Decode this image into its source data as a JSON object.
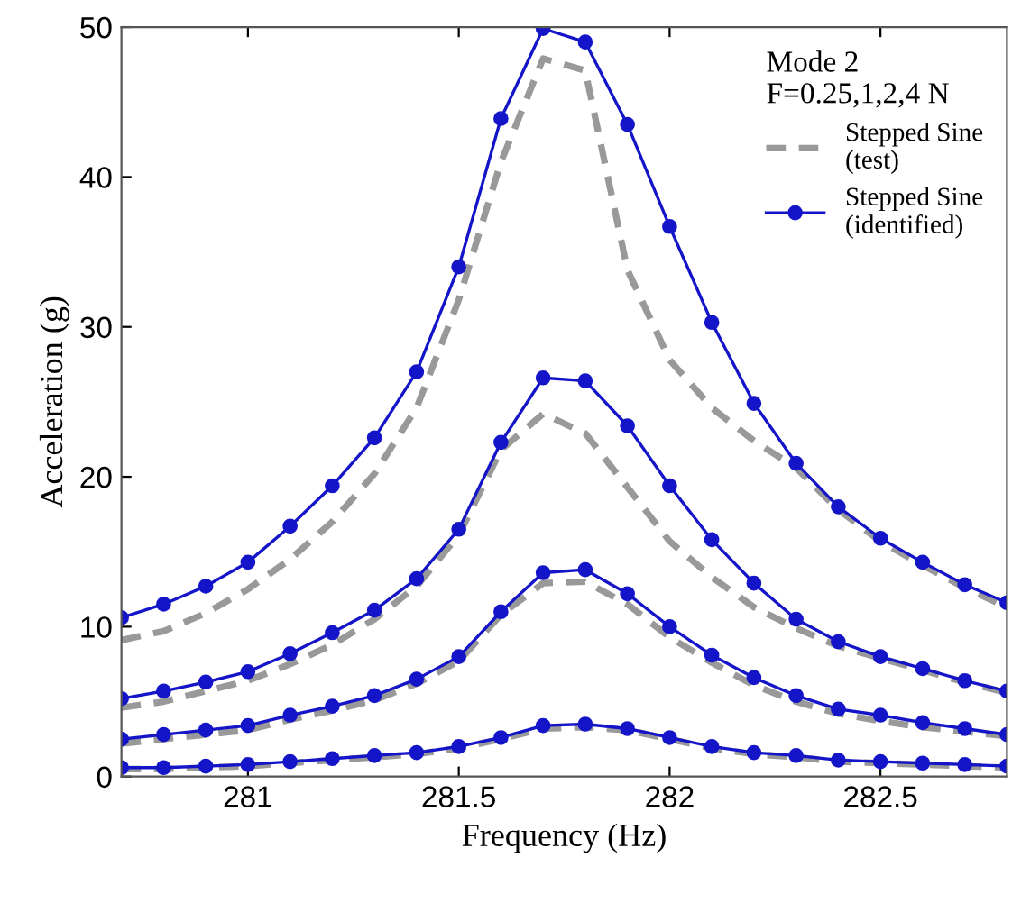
{
  "chart_data": {
    "type": "line",
    "xlabel": "Frequency (Hz)",
    "ylabel": "Acceleration (g)",
    "legend_title": "Mode 2\nF=0.25,1,2,4 N",
    "legend": "top right",
    "grid": false,
    "x": [
      280.7,
      280.8,
      280.9,
      281.0,
      281.1,
      281.2,
      281.3,
      281.4,
      281.5,
      281.6,
      281.7,
      281.8,
      281.9,
      282.0,
      282.1,
      282.2,
      282.3,
      282.4,
      282.5,
      282.6,
      282.7,
      282.8
    ],
    "xlim": [
      280.7,
      282.8
    ],
    "xticks": [
      281,
      281.5,
      282,
      282.5
    ],
    "ylim": [
      0,
      50
    ],
    "yticks": [
      0,
      10,
      20,
      30,
      40,
      50
    ],
    "series": [
      {
        "name": "Stepped Sine\n(test)",
        "color": "#999999",
        "line_style": "dashed",
        "marker": "none",
        "values": [
          9.1,
          9.7,
          10.9,
          12.5,
          14.5,
          17.0,
          20.2,
          24.6,
          31.8,
          41.0,
          47.9,
          47.1,
          33.8,
          27.8,
          24.6,
          22.4,
          20.6,
          17.8,
          15.7,
          14.1,
          12.6,
          11.3
        ]
      },
      {
        "color": "#999999",
        "line_style": "dashed",
        "marker": "none",
        "values": [
          4.6,
          5.0,
          5.7,
          6.4,
          7.5,
          8.8,
          10.5,
          12.7,
          16.1,
          21.8,
          24.2,
          22.9,
          19.3,
          15.7,
          13.3,
          11.3,
          9.9,
          8.7,
          7.9,
          7.1,
          6.3,
          5.6
        ]
      },
      {
        "color": "#999999",
        "line_style": "dashed",
        "marker": "none",
        "values": [
          2.2,
          2.5,
          2.8,
          3.1,
          3.8,
          4.4,
          5.1,
          6.2,
          7.7,
          10.8,
          12.9,
          13.0,
          11.5,
          9.3,
          7.6,
          6.1,
          5.0,
          4.2,
          3.7,
          3.3,
          3.0,
          2.7
        ]
      },
      {
        "color": "#999999",
        "line_style": "dashed",
        "marker": "none",
        "values": [
          0.5,
          0.5,
          0.6,
          0.7,
          0.9,
          1.1,
          1.3,
          1.5,
          1.9,
          2.5,
          3.2,
          3.3,
          3.1,
          2.5,
          1.9,
          1.5,
          1.3,
          1.0,
          0.9,
          0.8,
          0.7,
          0.6
        ]
      },
      {
        "name": "Stepped Sine\n(identified)",
        "color": "#1414c8",
        "line_style": "solid",
        "marker": "circle",
        "values": [
          10.6,
          11.5,
          12.7,
          14.3,
          16.7,
          19.4,
          22.6,
          27.0,
          34.0,
          43.9,
          49.9,
          49.0,
          43.5,
          36.7,
          30.3,
          24.9,
          20.9,
          18.0,
          15.9,
          14.3,
          12.8,
          11.6
        ]
      },
      {
        "color": "#1414c8",
        "line_style": "solid",
        "marker": "circle",
        "values": [
          5.2,
          5.7,
          6.3,
          7.0,
          8.2,
          9.6,
          11.1,
          13.2,
          16.5,
          22.3,
          26.6,
          26.4,
          23.4,
          19.4,
          15.8,
          12.9,
          10.5,
          9.0,
          8.0,
          7.2,
          6.4,
          5.7
        ]
      },
      {
        "color": "#1414c8",
        "line_style": "solid",
        "marker": "circle",
        "values": [
          2.5,
          2.8,
          3.1,
          3.4,
          4.1,
          4.7,
          5.4,
          6.5,
          8.0,
          11.0,
          13.6,
          13.8,
          12.2,
          10.0,
          8.1,
          6.6,
          5.4,
          4.5,
          4.1,
          3.6,
          3.2,
          2.8
        ]
      },
      {
        "color": "#1414c8",
        "line_style": "solid",
        "marker": "circle",
        "values": [
          0.6,
          0.6,
          0.7,
          0.8,
          1.0,
          1.2,
          1.4,
          1.6,
          2.0,
          2.6,
          3.4,
          3.5,
          3.2,
          2.6,
          2.0,
          1.6,
          1.4,
          1.1,
          1.0,
          0.9,
          0.8,
          0.7
        ]
      }
    ]
  }
}
